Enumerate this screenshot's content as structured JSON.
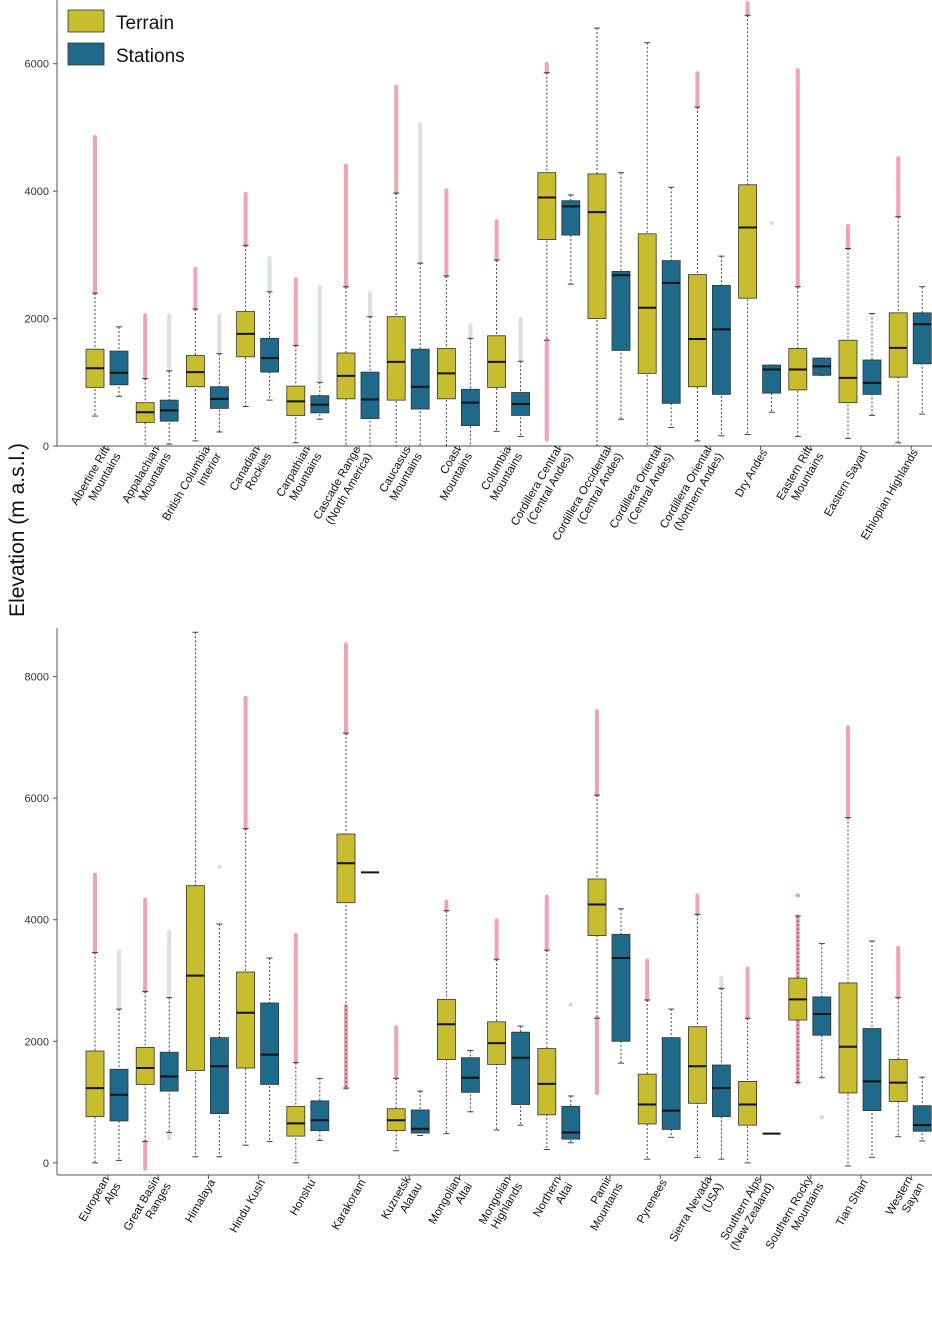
{
  "chart_data": {
    "type": "boxplot",
    "ylabel": "Elevation (m a.s.l.)",
    "legend": {
      "position": "top-left",
      "entries": [
        {
          "name": "Terrain",
          "color": "#c8bd2e"
        },
        {
          "name": "Stations",
          "color": "#1f6a8a"
        }
      ]
    },
    "outlier_colors": {
      "terrain": "#f29aa8",
      "stations": "#d6dde2"
    },
    "panels": [
      {
        "name": "top",
        "ylim": [
          0,
          7000
        ],
        "yticks": [
          0,
          2000,
          4000,
          6000
        ],
        "categories": [
          {
            "name": "Albertine Rift\nMountains",
            "terrain": {
              "lw": 470,
              "q1": 920,
              "med": 1220,
              "q3": 1520,
              "uw": 2400,
              "out": [
                2400,
                4850
              ]
            },
            "stations": {
              "lw": 780,
              "q1": 960,
              "med": 1150,
              "q3": 1490,
              "uw": 1870,
              "out": []
            }
          },
          {
            "name": "Appalachian\nMountains",
            "terrain": {
              "lw": 0,
              "q1": 370,
              "med": 530,
              "q3": 680,
              "uw": 1060,
              "out": [
                1060,
                2050
              ]
            },
            "stations": {
              "lw": 30,
              "q1": 390,
              "med": 560,
              "q3": 720,
              "uw": 1180,
              "out": [
                1180,
                2050
              ]
            }
          },
          {
            "name": "British Columbia\nInterior",
            "terrain": {
              "lw": 80,
              "q1": 930,
              "med": 1160,
              "q3": 1420,
              "uw": 2150,
              "out": [
                2150,
                2780
              ]
            },
            "stations": {
              "lw": 220,
              "q1": 590,
              "med": 740,
              "q3": 930,
              "uw": 1450,
              "out": [
                1450,
                2050
              ]
            }
          },
          {
            "name": "Canadian\nRockies",
            "terrain": {
              "lw": 620,
              "q1": 1400,
              "med": 1760,
              "q3": 2110,
              "uw": 3150,
              "out": [
                3150,
                3960
              ]
            },
            "stations": {
              "lw": 720,
              "q1": 1160,
              "med": 1380,
              "q3": 1690,
              "uw": 2420,
              "out": [
                2420,
                2950
              ]
            }
          },
          {
            "name": "Carpathian\nMountains",
            "terrain": {
              "lw": 50,
              "q1": 480,
              "med": 700,
              "q3": 940,
              "uw": 1580,
              "out": [
                1580,
                2620
              ]
            },
            "stations": {
              "lw": 420,
              "q1": 520,
              "med": 650,
              "q3": 790,
              "uw": 1000,
              "out": [
                1000,
                2500
              ]
            }
          },
          {
            "name": "Cascade Range\n(North America)",
            "terrain": {
              "lw": 0,
              "q1": 740,
              "med": 1100,
              "q3": 1460,
              "uw": 2500,
              "out": [
                2500,
                4400
              ]
            },
            "stations": {
              "lw": 0,
              "q1": 430,
              "med": 730,
              "q3": 1160,
              "uw": 2030,
              "out": [
                2030,
                2400
              ]
            }
          },
          {
            "name": "Caucasus\nMountains",
            "terrain": {
              "lw": 0,
              "q1": 720,
              "med": 1320,
              "q3": 2030,
              "uw": 3970,
              "out": [
                3970,
                5640
              ]
            },
            "stations": {
              "lw": 0,
              "q1": 580,
              "med": 930,
              "q3": 1520,
              "uw": 2870,
              "out": [
                2870,
                5050
              ]
            }
          },
          {
            "name": "Coast\nMountains",
            "terrain": {
              "lw": 0,
              "q1": 740,
              "med": 1140,
              "q3": 1530,
              "uw": 2670,
              "out": [
                2670,
                4010
              ]
            },
            "stations": {
              "lw": 0,
              "q1": 320,
              "med": 680,
              "q3": 890,
              "uw": 1690,
              "out": [
                1690,
                1900
              ]
            }
          },
          {
            "name": "Columbia\nMountains",
            "terrain": {
              "lw": 230,
              "q1": 920,
              "med": 1320,
              "q3": 1730,
              "uw": 2920,
              "out": [
                2920,
                3530
              ]
            },
            "stations": {
              "lw": 150,
              "q1": 480,
              "med": 660,
              "q3": 840,
              "uw": 1330,
              "out": [
                1330,
                2000
              ]
            }
          },
          {
            "name": "Cordillera Central\n(Central Andes)",
            "terrain": {
              "lw": 1660,
              "q1": 3240,
              "med": 3900,
              "q3": 4290,
              "uw": 5860,
              "out": [
                100,
                1660,
                5860,
                6000
              ]
            },
            "stations": {
              "lw": 2540,
              "q1": 3310,
              "med": 3760,
              "q3": 3850,
              "uw": 3940,
              "out": []
            }
          },
          {
            "name": "Cordillera Occidental\n(Central Andes)",
            "terrain": {
              "lw": 0,
              "q1": 2000,
              "med": 3670,
              "q3": 4270,
              "uw": 6560,
              "out": []
            },
            "stations": {
              "lw": 420,
              "q1": 1500,
              "med": 2680,
              "q3": 2740,
              "uw": 4290,
              "out": []
            }
          },
          {
            "name": "Cordillera Oriental\n(Central Andes)",
            "terrain": {
              "lw": 0,
              "q1": 1140,
              "med": 2170,
              "q3": 3330,
              "uw": 6330,
              "out": []
            },
            "stations": {
              "lw": 290,
              "q1": 670,
              "med": 2560,
              "q3": 2910,
              "uw": 4060,
              "out": []
            }
          },
          {
            "name": "Cordillera Oriental\n(Northern Andes)",
            "terrain": {
              "lw": 80,
              "q1": 930,
              "med": 1680,
              "q3": 2690,
              "uw": 5320,
              "out": [
                5320,
                5850
              ]
            },
            "stations": {
              "lw": 160,
              "q1": 810,
              "med": 1830,
              "q3": 2520,
              "uw": 2980,
              "out": []
            }
          },
          {
            "name": "Dry Andes",
            "terrain": {
              "lw": 180,
              "q1": 2320,
              "med": 3430,
              "q3": 4100,
              "uw": 6760,
              "out": [
                6760,
                6950
              ]
            },
            "stations": {
              "lw": 530,
              "q1": 830,
              "med": 1200,
              "q3": 1270,
              "uw": 1270,
              "out": [
                3500
              ]
            }
          },
          {
            "name": "Eastern Rift\nMountains",
            "terrain": {
              "lw": 150,
              "q1": 880,
              "med": 1200,
              "q3": 1530,
              "uw": 2500,
              "out": [
                2500,
                5900
              ]
            },
            "stations": {
              "lw": 1110,
              "q1": 1110,
              "med": 1250,
              "q3": 1380,
              "uw": 1380,
              "out": []
            }
          },
          {
            "name": "Eastern Sayan",
            "terrain": {
              "lw": 120,
              "q1": 680,
              "med": 1070,
              "q3": 1660,
              "uw": 3100,
              "out": [
                3100,
                3450
              ]
            },
            "stations": {
              "lw": 480,
              "q1": 810,
              "med": 990,
              "q3": 1350,
              "uw": 2080,
              "out": []
            }
          },
          {
            "name": "Ethiopian Highlands",
            "terrain": {
              "lw": 50,
              "q1": 1080,
              "med": 1540,
              "q3": 2090,
              "uw": 3600,
              "out": [
                3600,
                4520
              ]
            },
            "stations": {
              "lw": 500,
              "q1": 1290,
              "med": 1910,
              "q3": 2090,
              "uw": 2500,
              "out": []
            }
          }
        ]
      },
      {
        "name": "bottom",
        "ylim": [
          -200,
          8800
        ],
        "yticks": [
          0,
          2000,
          4000,
          6000,
          8000
        ],
        "categories": [
          {
            "name": "European\nAlps",
            "terrain": {
              "lw": 0,
              "q1": 760,
              "med": 1230,
              "q3": 1840,
              "uw": 3460,
              "out": [
                3460,
                4740
              ]
            },
            "stations": {
              "lw": 40,
              "q1": 690,
              "med": 1120,
              "q3": 1540,
              "uw": 2530,
              "out": [
                2530,
                3480
              ]
            }
          },
          {
            "name": "Great Basin\nRanges",
            "terrain": {
              "lw": 350,
              "q1": 1290,
              "med": 1560,
              "q3": 1900,
              "uw": 2820,
              "out": [
                -100,
                350,
                2820,
                4330
              ]
            },
            "stations": {
              "lw": 500,
              "q1": 1180,
              "med": 1420,
              "q3": 1820,
              "uw": 2720,
              "out": [
                400,
                500,
                2720,
                3800
              ]
            }
          },
          {
            "name": "Himalaya",
            "terrain": {
              "lw": 100,
              "q1": 1520,
              "med": 3080,
              "q3": 4560,
              "uw": 8730,
              "out": []
            },
            "stations": {
              "lw": 100,
              "q1": 810,
              "med": 1590,
              "q3": 2060,
              "uw": 3930,
              "out": [
                4870
              ]
            }
          },
          {
            "name": "Hindu Kush",
            "terrain": {
              "lw": 290,
              "q1": 1560,
              "med": 2470,
              "q3": 3140,
              "uw": 5500,
              "out": [
                5500,
                7650
              ]
            },
            "stations": {
              "lw": 350,
              "q1": 1290,
              "med": 1780,
              "q3": 2630,
              "uw": 3370,
              "out": []
            }
          },
          {
            "name": "Honshu",
            "terrain": {
              "lw": 0,
              "q1": 440,
              "med": 650,
              "q3": 930,
              "uw": 1650,
              "out": [
                1650,
                3750
              ]
            },
            "stations": {
              "lw": 370,
              "q1": 530,
              "med": 700,
              "q3": 1020,
              "uw": 1390,
              "out": []
            }
          },
          {
            "name": "Karakoram",
            "terrain": {
              "lw": 1230,
              "q1": 4280,
              "med": 4930,
              "q3": 5410,
              "uw": 7070,
              "out": [
                1230,
                2580,
                7070,
                8530
              ]
            },
            "stations": {
              "lw": 4780,
              "q1": 4780,
              "med": 4780,
              "q3": 4780,
              "uw": 4780,
              "out": []
            }
          },
          {
            "name": "Kuznetsk\nAlatau",
            "terrain": {
              "lw": 200,
              "q1": 530,
              "med": 700,
              "q3": 890,
              "uw": 1390,
              "out": [
                1390,
                2230
              ]
            },
            "stations": {
              "lw": 450,
              "q1": 490,
              "med": 560,
              "q3": 870,
              "uw": 1180,
              "out": []
            }
          },
          {
            "name": "Mongolian\nAltai",
            "terrain": {
              "lw": 480,
              "q1": 1700,
              "med": 2280,
              "q3": 2690,
              "uw": 4150,
              "out": [
                4150,
                4300
              ]
            },
            "stations": {
              "lw": 840,
              "q1": 1160,
              "med": 1400,
              "q3": 1730,
              "uw": 1850,
              "out": []
            }
          },
          {
            "name": "Mongolian\nHighlands",
            "terrain": {
              "lw": 540,
              "q1": 1620,
              "med": 1970,
              "q3": 2320,
              "uw": 3350,
              "out": [
                3350,
                3990
              ]
            },
            "stations": {
              "lw": 620,
              "q1": 960,
              "med": 1730,
              "q3": 2150,
              "uw": 2250,
              "out": []
            }
          },
          {
            "name": "Northern\nAltai",
            "terrain": {
              "lw": 220,
              "q1": 790,
              "med": 1300,
              "q3": 1880,
              "uw": 3500,
              "out": [
                3500,
                4380
              ]
            },
            "stations": {
              "lw": 330,
              "q1": 390,
              "med": 500,
              "q3": 930,
              "uw": 1100,
              "out": [
                2600
              ]
            }
          },
          {
            "name": "Pamir\nMountains",
            "terrain": {
              "lw": 2380,
              "q1": 3740,
              "med": 4250,
              "q3": 4670,
              "uw": 6050,
              "out": [
                1150,
                2380,
                6050,
                7430
              ]
            },
            "stations": {
              "lw": 1640,
              "q1": 2000,
              "med": 3370,
              "q3": 3760,
              "uw": 4180,
              "out": []
            }
          },
          {
            "name": "Pyrenees",
            "terrain": {
              "lw": 60,
              "q1": 640,
              "med": 960,
              "q3": 1460,
              "uw": 2680,
              "out": [
                2680,
                3330
              ]
            },
            "stations": {
              "lw": 420,
              "q1": 550,
              "med": 860,
              "q3": 2060,
              "uw": 2530,
              "out": []
            }
          },
          {
            "name": "Sierra Nevada\n(USA)",
            "terrain": {
              "lw": 90,
              "q1": 980,
              "med": 1590,
              "q3": 2240,
              "uw": 4090,
              "out": [
                4090,
                4400
              ]
            },
            "stations": {
              "lw": 60,
              "q1": 760,
              "med": 1230,
              "q3": 1610,
              "uw": 2870,
              "out": [
                2870,
                3050
              ]
            }
          },
          {
            "name": "Southern Alps\n(New Zealand)",
            "terrain": {
              "lw": 0,
              "q1": 620,
              "med": 960,
              "q3": 1340,
              "uw": 2380,
              "out": [
                2380,
                3200
              ]
            },
            "stations": {
              "lw": 480,
              "q1": 480,
              "med": 480,
              "q3": 480,
              "uw": 480,
              "out": []
            }
          },
          {
            "name": "Southern Rocky\nMountains",
            "terrain": {
              "lw": 1320,
              "q1": 2350,
              "med": 2690,
              "q3": 3040,
              "uw": 4060,
              "out": [
                1320,
                4060,
                4400
              ]
            },
            "stations": {
              "lw": 1400,
              "q1": 2100,
              "med": 2450,
              "q3": 2730,
              "uw": 3610,
              "out": [
                750
              ]
            }
          },
          {
            "name": "Tian Shan",
            "terrain": {
              "lw": -50,
              "q1": 1150,
              "med": 1910,
              "q3": 2960,
              "uw": 5680,
              "out": [
                5680,
                7170
              ]
            },
            "stations": {
              "lw": 90,
              "q1": 860,
              "med": 1340,
              "q3": 2210,
              "uw": 3650,
              "out": []
            }
          },
          {
            "name": "Western\nSayan",
            "terrain": {
              "lw": 430,
              "q1": 1010,
              "med": 1320,
              "q3": 1700,
              "uw": 2720,
              "out": [
                2720,
                3540
              ]
            },
            "stations": {
              "lw": 360,
              "q1": 520,
              "med": 620,
              "q3": 940,
              "uw": 1410,
              "out": []
            }
          }
        ]
      }
    ]
  }
}
